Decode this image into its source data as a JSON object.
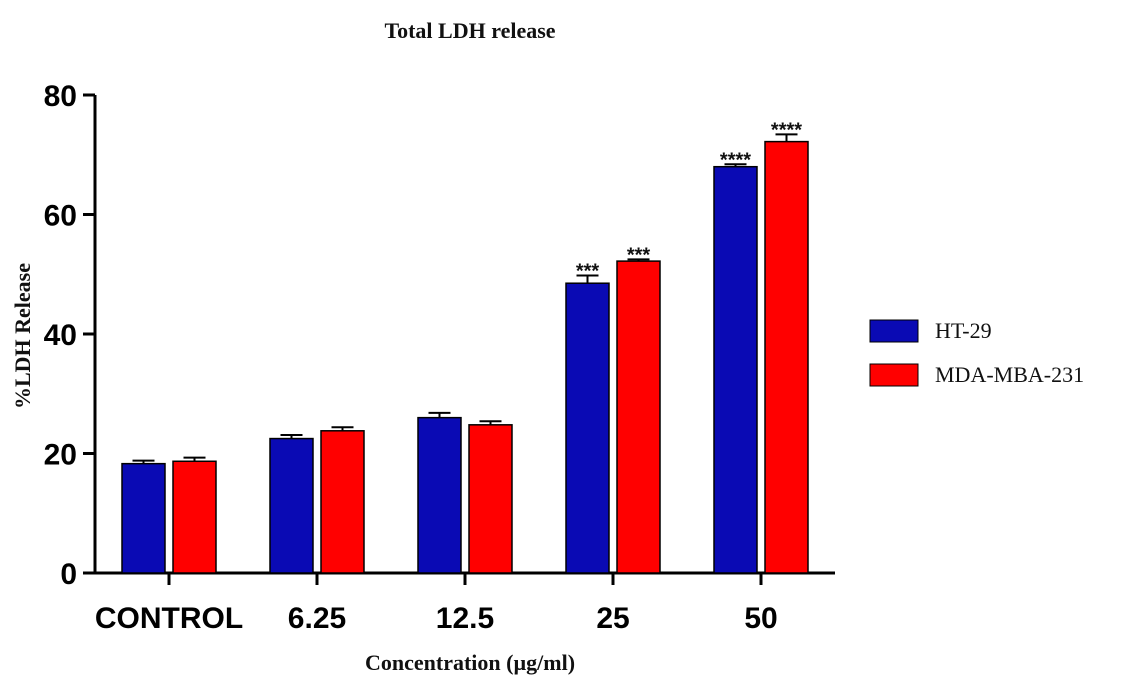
{
  "chart_data": {
    "type": "bar",
    "title": "Total LDH release",
    "xlabel": "Concentration (µg/ml)",
    "ylabel": "%LDH Release",
    "ylim": [
      0,
      80
    ],
    "yticks": [
      0,
      20,
      40,
      60,
      80
    ],
    "categories": [
      "CONTROL",
      "6.25",
      "12.5",
      "25",
      "50"
    ],
    "series": [
      {
        "name": "HT-29",
        "color": "#0a0ab4",
        "values": [
          18.3,
          22.5,
          26.0,
          48.5,
          68.0
        ],
        "errors": [
          0.5,
          0.6,
          0.8,
          1.3,
          0.4
        ],
        "significance": [
          "",
          "",
          "",
          "***",
          "****"
        ]
      },
      {
        "name": "MDA-MBA-231",
        "color": "#ff0000",
        "values": [
          18.7,
          23.8,
          24.8,
          52.2,
          72.2
        ],
        "errors": [
          0.6,
          0.6,
          0.6,
          0.3,
          1.2
        ],
        "significance": [
          "",
          "",
          "",
          "***",
          "****"
        ]
      }
    ],
    "legend_position": "right",
    "grid": false
  }
}
